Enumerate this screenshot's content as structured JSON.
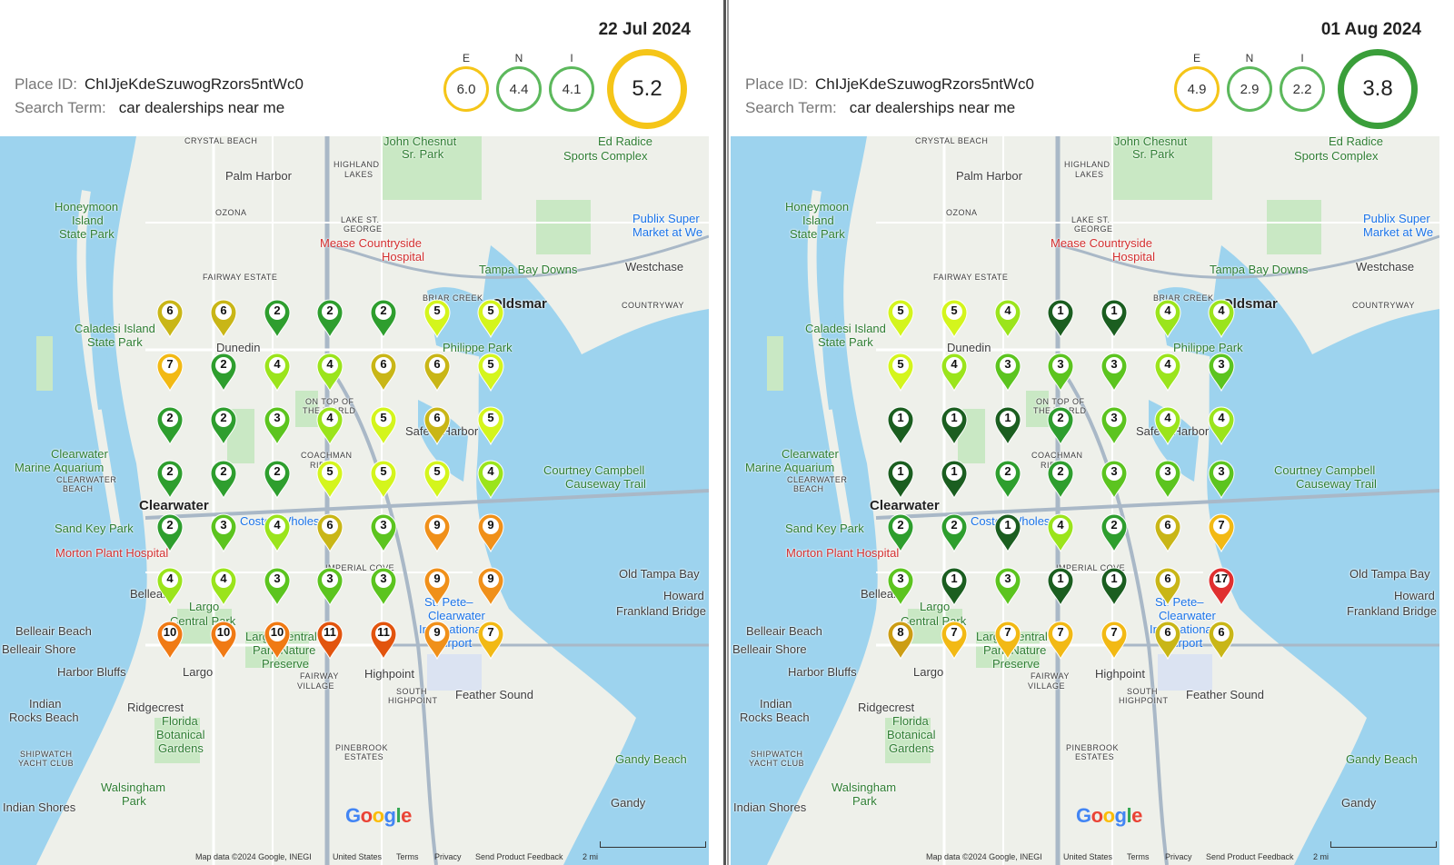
{
  "colors": {
    "c1": "#1b5e20",
    "c2": "#2e9e2e",
    "c3": "#5cc41f",
    "c4": "#9be41c",
    "c5": "#d4f51d",
    "c6": "#c9b617",
    "c7": "#f2b914",
    "c8": "#cc9d14",
    "c9": "#f0901a",
    "c10": "#f07a14",
    "c11": "#e2540e",
    "c17": "#e03030",
    "water": "#9dd3ee",
    "land": "#eef0ea",
    "park": "#c9e8c4"
  },
  "panels": [
    {
      "date": "22 Jul 2024",
      "place_id_label": "Place ID:",
      "place_id": "ChIJjeKdeSzuwogRzors5ntWc0",
      "search_term_label": "Search Term:",
      "search_term": "car dealerships near me",
      "scores": {
        "E": "6.0",
        "N": "4.4",
        "I": "4.1",
        "overall": "5.2",
        "E_label": "E",
        "N_label": "N",
        "I_label": "I"
      },
      "score_colors": {
        "E": "#f5c518",
        "N": "#5cb85c",
        "I": "#5cb85c",
        "overall": "#f5c518"
      },
      "grid": [
        [
          "6",
          "6",
          "2",
          "2",
          "2",
          "5",
          "5"
        ],
        [
          "7",
          "2",
          "4",
          "4",
          "6",
          "6",
          "5"
        ],
        [
          "2",
          "2",
          "3",
          "4",
          "5",
          "6",
          "5"
        ],
        [
          "2",
          "2",
          "2",
          "5",
          "5",
          "5",
          "4"
        ],
        [
          "2",
          "3",
          "4",
          "6",
          "3",
          "9",
          "9"
        ],
        [
          "4",
          "4",
          "3",
          "3",
          "3",
          "9",
          "9"
        ],
        [
          "10",
          "10",
          "10",
          "11",
          "11",
          "9",
          "7"
        ]
      ]
    },
    {
      "date": "01 Aug 2024",
      "place_id_label": "Place ID:",
      "place_id": "ChIJjeKdeSzuwogRzors5ntWc0",
      "search_term_label": "Search Term:",
      "search_term": "car dealerships near me",
      "scores": {
        "E": "4.9",
        "N": "2.9",
        "I": "2.2",
        "overall": "3.8",
        "E_label": "E",
        "N_label": "N",
        "I_label": "I"
      },
      "score_colors": {
        "E": "#f5c518",
        "N": "#5cb85c",
        "I": "#5cb85c",
        "overall": "#3a9e3a"
      },
      "grid": [
        [
          "5",
          "5",
          "4",
          "1",
          "1",
          "4",
          "4"
        ],
        [
          "5",
          "4",
          "3",
          "3",
          "3",
          "4",
          "3"
        ],
        [
          "1",
          "1",
          "1",
          "2",
          "3",
          "4",
          "4"
        ],
        [
          "1",
          "1",
          "2",
          "2",
          "3",
          "3",
          "3"
        ],
        [
          "2",
          "2",
          "1",
          "4",
          "2",
          "6",
          "7"
        ],
        [
          "3",
          "1",
          "3",
          "1",
          "1",
          "6",
          "17"
        ],
        [
          "8",
          "7",
          "7",
          "7",
          "7",
          "6",
          "6"
        ]
      ]
    }
  ],
  "map_labels": [
    {
      "t": "CRYSTAL BEACH",
      "k": "sm"
    },
    {
      "t": "John Chesnut",
      "k": "green"
    },
    {
      "t": "Sr. Park",
      "k": "green"
    },
    {
      "t": "Ed Radice",
      "k": "green"
    },
    {
      "t": "Sports Complex",
      "k": "green"
    },
    {
      "t": "Palm Harbor",
      "k": "n"
    },
    {
      "t": "HIGHLAND",
      "k": "sm"
    },
    {
      "t": "LAKES",
      "k": "sm"
    },
    {
      "t": "Honeymoon",
      "k": "green"
    },
    {
      "t": "Island",
      "k": "green"
    },
    {
      "t": "State Park",
      "k": "green"
    },
    {
      "t": "OZONA",
      "k": "sm"
    },
    {
      "t": "LAKE ST.",
      "k": "sm"
    },
    {
      "t": "GEORGE",
      "k": "sm"
    },
    {
      "t": "Publix Super",
      "k": "blue"
    },
    {
      "t": "Market at We",
      "k": "blue"
    },
    {
      "t": "Mease Countryside",
      "k": "red"
    },
    {
      "t": "Hospital",
      "k": "red"
    },
    {
      "t": "Tampa Bay Downs",
      "k": "green"
    },
    {
      "t": "Westchase",
      "k": "n"
    },
    {
      "t": "FAIRWAY ESTATE",
      "k": "sm"
    },
    {
      "t": "BRIAR CREEK",
      "k": "sm"
    },
    {
      "t": "COUNTRYWAY",
      "k": "sm"
    },
    {
      "t": "Oldsmar",
      "k": "bold"
    },
    {
      "t": "Caladesi Island",
      "k": "green"
    },
    {
      "t": "State Park",
      "k": "green"
    },
    {
      "t": "Dunedin",
      "k": "n"
    },
    {
      "t": "Philippe Park",
      "k": "green"
    },
    {
      "t": "Safety Harbor",
      "k": "n"
    },
    {
      "t": "Clearwater",
      "k": "green"
    },
    {
      "t": "Marine Aquarium",
      "k": "green"
    },
    {
      "t": "CLEARWATER",
      "k": "sm"
    },
    {
      "t": "BEACH",
      "k": "sm"
    },
    {
      "t": "Courtney Campbell",
      "k": "green"
    },
    {
      "t": "Causeway Trail",
      "k": "green"
    },
    {
      "t": "Clearwater",
      "k": "bold"
    },
    {
      "t": "Sand Key Park",
      "k": "green"
    },
    {
      "t": "Costco Wholesale",
      "k": "blue"
    },
    {
      "t": "Morton Plant Hospital",
      "k": "red"
    },
    {
      "t": "IMPERIAL COVE",
      "k": "sm"
    },
    {
      "t": "Old Tampa Bay",
      "k": "n"
    },
    {
      "t": "Belleair",
      "k": "n"
    },
    {
      "t": "Largo",
      "k": "green"
    },
    {
      "t": "Central Park",
      "k": "green"
    },
    {
      "t": "St. Pete–",
      "k": "blue"
    },
    {
      "t": "Clearwater",
      "k": "blue"
    },
    {
      "t": "International",
      "k": "blue"
    },
    {
      "t": "Airport",
      "k": "blue"
    },
    {
      "t": "Howard",
      "k": "n"
    },
    {
      "t": "Frankland Bridge",
      "k": "n"
    },
    {
      "t": "Belleair Beach",
      "k": "n"
    },
    {
      "t": "Belleair Shore",
      "k": "n"
    },
    {
      "t": "Largo Central",
      "k": "green"
    },
    {
      "t": "Park Nature",
      "k": "green"
    },
    {
      "t": "Preserve",
      "k": "green"
    },
    {
      "t": "FAIRWAY",
      "k": "sm"
    },
    {
      "t": "VILLAGE",
      "k": "sm"
    },
    {
      "t": "Harbor Bluffs",
      "k": "n"
    },
    {
      "t": "Largo",
      "k": "n"
    },
    {
      "t": "Highpoint",
      "k": "n"
    },
    {
      "t": "Feather Sound",
      "k": "n"
    },
    {
      "t": "SOUTH",
      "k": "sm"
    },
    {
      "t": "HIGHPOINT",
      "k": "sm"
    },
    {
      "t": "Indian",
      "k": "n"
    },
    {
      "t": "Rocks Beach",
      "k": "n"
    },
    {
      "t": "Ridgecrest",
      "k": "n"
    },
    {
      "t": "Florida",
      "k": "green"
    },
    {
      "t": "Botanical",
      "k": "green"
    },
    {
      "t": "Gardens",
      "k": "green"
    },
    {
      "t": "SHIPWATCH",
      "k": "sm"
    },
    {
      "t": "YACHT CLUB",
      "k": "sm"
    },
    {
      "t": "PINEBROOK",
      "k": "sm"
    },
    {
      "t": "ESTATES",
      "k": "sm"
    },
    {
      "t": "Gandy Beach",
      "k": "green"
    },
    {
      "t": "Walsingham",
      "k": "green"
    },
    {
      "t": "Park",
      "k": "green"
    },
    {
      "t": "Gandy",
      "k": "n"
    },
    {
      "t": "Indian Shores",
      "k": "n"
    },
    {
      "t": "ON TOP OF",
      "k": "sm"
    },
    {
      "t": "THE WORLD",
      "k": "sm"
    },
    {
      "t": "COACHMAN",
      "k": "sm"
    },
    {
      "t": "RIDGE",
      "k": "sm"
    }
  ],
  "footer": {
    "map_data": "Map data ©2024 Google, INEGI",
    "country": "United States",
    "terms": "Terms",
    "privacy": "Privacy",
    "feedback": "Send Product Feedback",
    "scale": "2 mi"
  },
  "google_logo": "Google"
}
